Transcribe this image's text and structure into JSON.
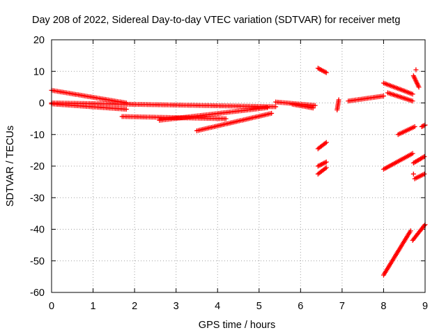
{
  "chart_data": {
    "type": "scatter",
    "title": "Day 208 of 2022, Sidereal Day-to-day VTEC variation (SDTVAR) for receiver metg",
    "xlabel": "GPS time / hours",
    "ylabel": "SDTVAR / TECUs",
    "xlim": [
      0,
      9
    ],
    "ylim": [
      -60,
      20
    ],
    "xticks": [
      "0",
      "1",
      "2",
      "3",
      "4",
      "5",
      "6",
      "7",
      "8",
      "9"
    ],
    "yticks": [
      "20",
      "10",
      "0",
      "-10",
      "-20",
      "-30",
      "-40",
      "-50",
      "-60"
    ],
    "grid": true,
    "marker": "+",
    "color": "#ff0000",
    "segments": [
      {
        "x0": 0.0,
        "x1": 1.8,
        "y0": 4.0,
        "y1": 0.0
      },
      {
        "x0": 0.0,
        "x1": 1.8,
        "y0": -0.3,
        "y1": -2.0
      },
      {
        "x0": 0.0,
        "x1": 5.4,
        "y0": 0.0,
        "y1": -1.2
      },
      {
        "x0": 1.7,
        "x1": 4.2,
        "y0": -4.3,
        "y1": -5.0
      },
      {
        "x0": 2.6,
        "x1": 5.2,
        "y0": -5.5,
        "y1": -1.5
      },
      {
        "x0": 3.5,
        "x1": 5.3,
        "y0": -8.8,
        "y1": -3.3
      },
      {
        "x0": 5.4,
        "x1": 6.35,
        "y0": 0.3,
        "y1": -0.8
      },
      {
        "x0": 5.8,
        "x1": 6.3,
        "y0": -0.4,
        "y1": -1.6
      },
      {
        "x0": 6.42,
        "x1": 6.62,
        "y0": 11.0,
        "y1": 9.6
      },
      {
        "x0": 6.42,
        "x1": 6.62,
        "y0": -14.5,
        "y1": -12.5
      },
      {
        "x0": 6.42,
        "x1": 6.62,
        "y0": -20.0,
        "y1": -18.7
      },
      {
        "x0": 6.42,
        "x1": 6.62,
        "y0": -22.5,
        "y1": -20.5
      },
      {
        "x0": 6.88,
        "x1": 6.92,
        "y0": -2.2,
        "y1": 1.0
      },
      {
        "x0": 7.15,
        "x1": 8.0,
        "y0": 0.6,
        "y1": 2.2
      },
      {
        "x0": 8.0,
        "x1": 8.7,
        "y0": 6.3,
        "y1": 2.8
      },
      {
        "x0": 8.1,
        "x1": 8.7,
        "y0": 3.2,
        "y1": 0.6
      },
      {
        "x0": 8.0,
        "x1": 8.7,
        "y0": -21.0,
        "y1": -16.0
      },
      {
        "x0": 8.0,
        "x1": 8.65,
        "y0": -54.5,
        "y1": -40.5
      },
      {
        "x0": 8.35,
        "x1": 8.75,
        "y0": -10.0,
        "y1": -7.5
      },
      {
        "x0": 8.7,
        "x1": 9.0,
        "y0": -43.5,
        "y1": -38.5
      },
      {
        "x0": 8.72,
        "x1": 8.98,
        "y0": -19.0,
        "y1": -17.0
      },
      {
        "x0": 8.75,
        "x1": 8.98,
        "y0": -24.0,
        "y1": -22.5
      },
      {
        "x0": 8.72,
        "x1": 8.85,
        "y0": 8.6,
        "y1": 5.0
      },
      {
        "x0": 8.92,
        "x1": 9.0,
        "y0": -7.5,
        "y1": -7.0
      }
    ],
    "points": [
      {
        "x": 8.78,
        "y": 10.5
      },
      {
        "x": 8.72,
        "y": -22.5
      }
    ]
  }
}
